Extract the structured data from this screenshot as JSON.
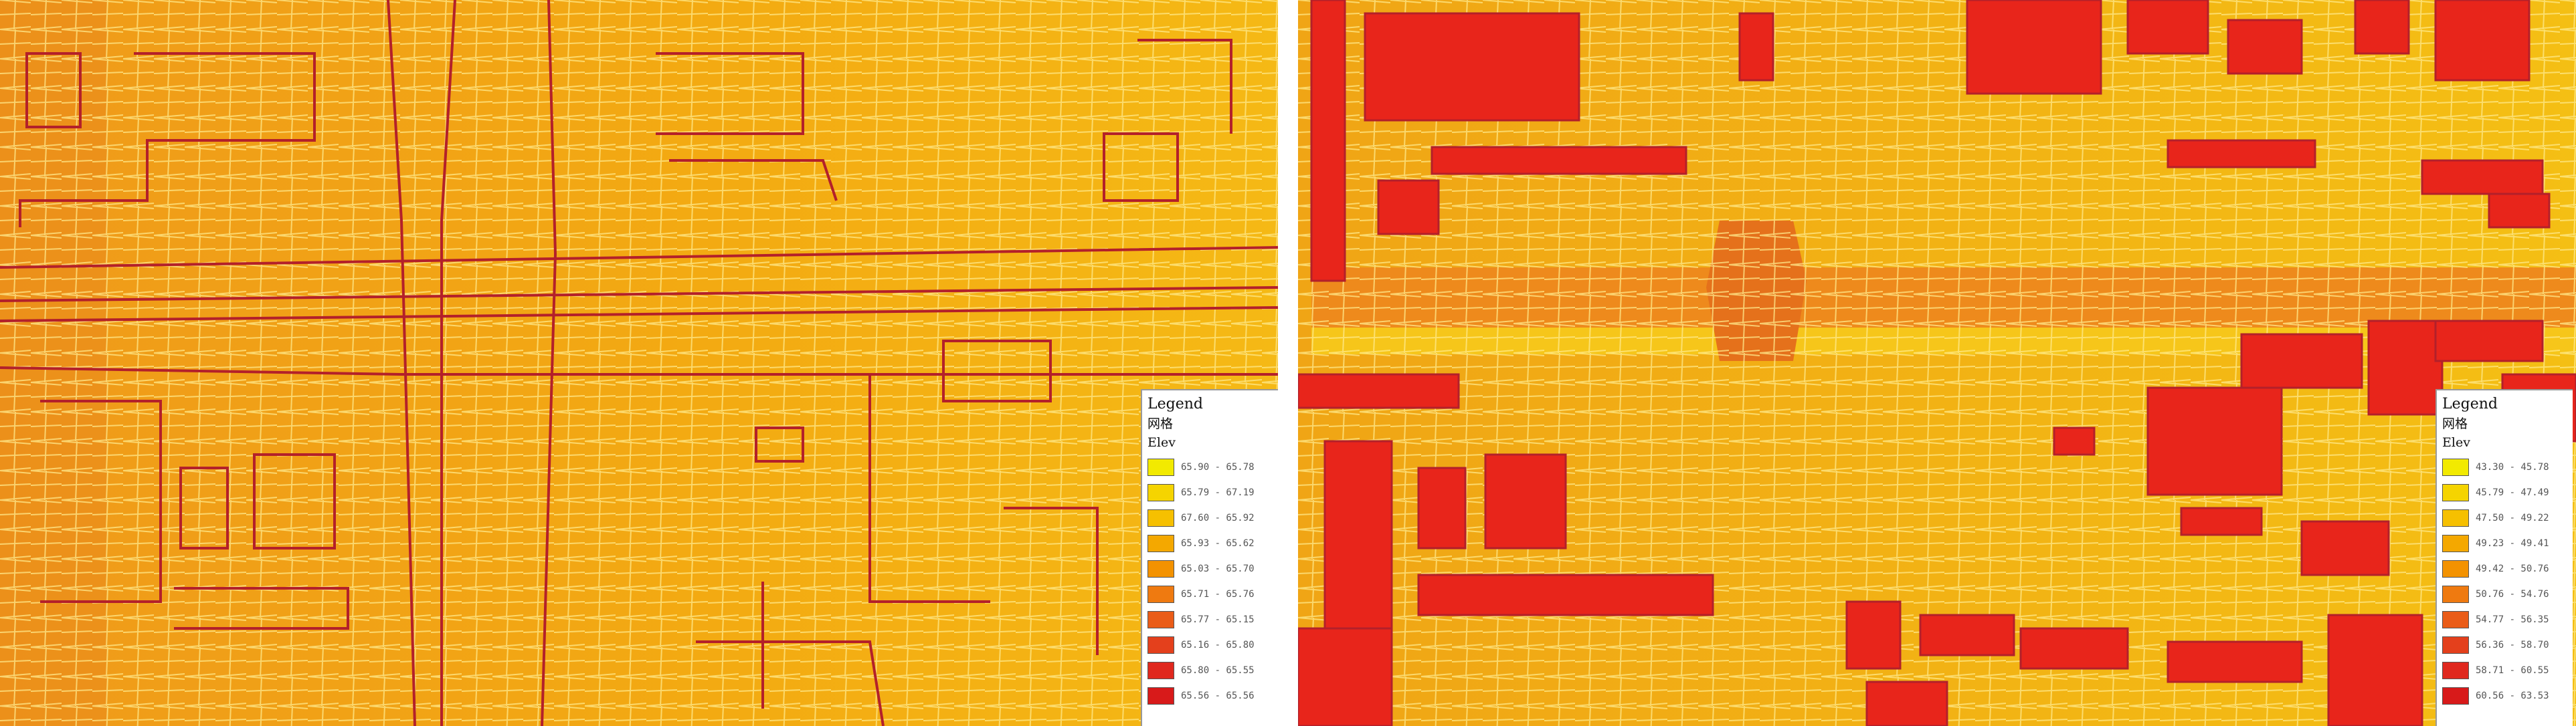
{
  "maps": [
    {
      "legend": {
        "title": "Legend",
        "layer": "网格",
        "field": "Elev",
        "items": [
          {
            "range": "65.90 - 65.78",
            "color": "#f2ea00"
          },
          {
            "range": "65.79 - 67.19",
            "color": "#f5d400"
          },
          {
            "range": "67.60 - 65.92",
            "color": "#f6c000"
          },
          {
            "range": "65.93 - 65.62",
            "color": "#f4a800"
          },
          {
            "range": "65.03 - 65.70",
            "color": "#f39200"
          },
          {
            "range": "65.71 - 65.76",
            "color": "#ef7a10"
          },
          {
            "range": "65.77 - 65.15",
            "color": "#ea5c18"
          },
          {
            "range": "65.16 - 65.80",
            "color": "#e4401c"
          },
          {
            "range": "65.80 - 65.55",
            "color": "#e0281e"
          },
          {
            "range": "65.56 - 65.56",
            "color": "#d81a1a"
          }
        ]
      }
    },
    {
      "legend": {
        "title": "Legend",
        "layer": "网格",
        "field": "Elev",
        "items": [
          {
            "range": "43.30 - 45.78",
            "color": "#f2ea00"
          },
          {
            "range": "45.79 - 47.49",
            "color": "#f5d400"
          },
          {
            "range": "47.50 - 49.22",
            "color": "#f6c000"
          },
          {
            "range": "49.23 - 49.41",
            "color": "#f4a800"
          },
          {
            "range": "49.42 - 50.76",
            "color": "#f39200"
          },
          {
            "range": "50.76 - 54.76",
            "color": "#ef7a10"
          },
          {
            "range": "54.77 - 56.35",
            "color": "#ea5c18"
          },
          {
            "range": "56.36 - 58.70",
            "color": "#e4401c"
          },
          {
            "range": "58.71 - 60.55",
            "color": "#e0281e"
          },
          {
            "range": "60.56 - 63.53",
            "color": "#d81a1a"
          }
        ]
      }
    }
  ],
  "colors": {
    "base_left": "#f3a712",
    "base_right": "#f3b413",
    "building_fill_right": "#e8251b",
    "building_outline": "#b3202a",
    "mesh_line": "#fff3a0",
    "road_band": "#ee8a1c",
    "road_band_light": "#f6c61a"
  }
}
